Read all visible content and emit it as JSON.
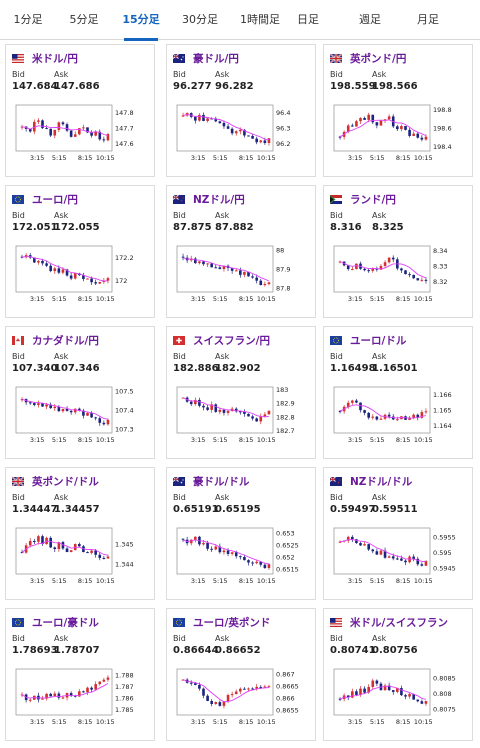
{
  "tabs": [
    {
      "label": "1分足",
      "active": false
    },
    {
      "label": "5分足",
      "active": false
    },
    {
      "label": "15分足",
      "active": true
    },
    {
      "label": "30分足",
      "active": false
    },
    {
      "label": "1時間足",
      "active": false
    },
    {
      "label": "日足",
      "active": false
    },
    {
      "label": "週足",
      "active": false
    },
    {
      "label": "月足",
      "active": false
    }
  ],
  "labels": {
    "bid": "Bid",
    "ask": "Ask"
  },
  "colors": {
    "up": "#d32f2f",
    "down": "#1a237e",
    "ma": "#e040fb",
    "pair": "#6a1b9a",
    "accent": "#1565c0"
  },
  "pairs": [
    {
      "name": "米ドル/円",
      "flag": "us",
      "bid": "147.684",
      "ask": "147.686",
      "x_ticks": [
        "3:15",
        "5:15",
        "8:15",
        "10:15"
      ],
      "y_ticks": [
        "147.8",
        "147.7",
        "147.6"
      ],
      "y_range": [
        147.55,
        147.85
      ]
    },
    {
      "name": "豪ドル/円",
      "flag": "au",
      "bid": "96.277",
      "ask": "96.282",
      "x_ticks": [
        "3:15",
        "5:15",
        "8:15",
        "10:15"
      ],
      "y_ticks": [
        "96.4",
        "96.3",
        "96.2"
      ],
      "y_range": [
        96.15,
        96.45
      ]
    },
    {
      "name": "英ポンド/円",
      "flag": "gb",
      "bid": "198.559",
      "ask": "198.566",
      "x_ticks": [
        "3:15",
        "5:15",
        "8:15",
        "10:15"
      ],
      "y_ticks": [
        "198.8",
        "198.6",
        "198.4"
      ],
      "y_range": [
        198.35,
        198.85
      ]
    },
    {
      "name": "ユーロ/円",
      "flag": "eu",
      "bid": "172.051",
      "ask": "172.055",
      "x_ticks": [
        "3:15",
        "5:15",
        "8:15",
        "10:15"
      ],
      "y_ticks": [
        "172.2",
        "172"
      ],
      "y_range": [
        171.9,
        172.3
      ]
    },
    {
      "name": "NZドル/円",
      "flag": "nz",
      "bid": "87.875",
      "ask": "87.882",
      "x_ticks": [
        "3:15",
        "5:15",
        "8:15",
        "10:15"
      ],
      "y_ticks": [
        "88",
        "87.9",
        "87.8"
      ],
      "y_range": [
        87.78,
        88.02
      ]
    },
    {
      "name": "ランド/円",
      "flag": "za",
      "bid": "8.316",
      "ask": "8.325",
      "x_ticks": [
        "3:15",
        "5:15",
        "8:15",
        "10:15"
      ],
      "y_ticks": [
        "8.34",
        "8.33",
        "8.32"
      ],
      "y_range": [
        8.313,
        8.343
      ]
    },
    {
      "name": "カナダドル/円",
      "flag": "ca",
      "bid": "107.340",
      "ask": "107.346",
      "x_ticks": [
        "3:15",
        "5:15",
        "8:15",
        "10:15"
      ],
      "y_ticks": [
        "107.5",
        "107.4",
        "107.3"
      ],
      "y_range": [
        107.28,
        107.52
      ]
    },
    {
      "name": "スイスフラン/円",
      "flag": "ch",
      "bid": "182.886",
      "ask": "182.902",
      "x_ticks": [
        "3:15",
        "5:15",
        "8:15",
        "10:15"
      ],
      "y_ticks": [
        "183",
        "182.9",
        "182.8",
        "182.7"
      ],
      "y_range": [
        182.68,
        183.02
      ]
    },
    {
      "name": "ユーロ/ドル",
      "flag": "eu",
      "bid": "1.16498",
      "ask": "1.16501",
      "x_ticks": [
        "3:15",
        "5:15",
        "8:15",
        "10:15"
      ],
      "y_ticks": [
        "1.166",
        "1.165",
        "1.164"
      ],
      "y_range": [
        1.1635,
        1.1665
      ]
    },
    {
      "name": "英ポンド/ドル",
      "flag": "gb",
      "bid": "1.34447",
      "ask": "1.34457",
      "x_ticks": [
        "3:15",
        "5:15",
        "8:15",
        "10:15"
      ],
      "y_ticks": [
        "1.345",
        "1.344"
      ],
      "y_range": [
        1.3435,
        1.3458
      ]
    },
    {
      "name": "豪ドル/ドル",
      "flag": "au",
      "bid": "0.65191",
      "ask": "0.65195",
      "x_ticks": [
        "3:15",
        "5:15",
        "8:15",
        "10:15"
      ],
      "y_ticks": [
        "0.653",
        "0.6525",
        "0.652",
        "0.6515"
      ],
      "y_range": [
        0.6513,
        0.6532
      ]
    },
    {
      "name": "NZドル/ドル",
      "flag": "nz",
      "bid": "0.59497",
      "ask": "0.59511",
      "x_ticks": [
        "3:15",
        "5:15",
        "8:15",
        "10:15"
      ],
      "y_ticks": [
        "0.5955",
        "0.595",
        "0.5945"
      ],
      "y_range": [
        0.5943,
        0.5958
      ]
    },
    {
      "name": "ユーロ/豪ドル",
      "flag": "eu",
      "bid": "1.78693",
      "ask": "1.78707",
      "x_ticks": [
        "3:15",
        "5:15",
        "8:15",
        "10:15"
      ],
      "y_ticks": [
        "1.788",
        "1.787",
        "1.786",
        "1.785"
      ],
      "y_range": [
        1.7845,
        1.7885
      ]
    },
    {
      "name": "ユーロ/英ポンド",
      "flag": "eu",
      "bid": "0.86644",
      "ask": "0.86652",
      "x_ticks": [
        "3:15",
        "5:15",
        "8:15",
        "10:15"
      ],
      "y_ticks": [
        "0.867",
        "0.8665",
        "0.866",
        "0.8655"
      ],
      "y_range": [
        0.8653,
        0.8672
      ]
    },
    {
      "name": "米ドル/スイスフラン",
      "flag": "us",
      "bid": "0.80741",
      "ask": "0.80756",
      "x_ticks": [
        "3:15",
        "5:15",
        "8:15",
        "10:15"
      ],
      "y_ticks": [
        "0.8085",
        "0.808",
        "0.8075"
      ],
      "y_range": [
        0.8073,
        0.8088
      ]
    }
  ]
}
